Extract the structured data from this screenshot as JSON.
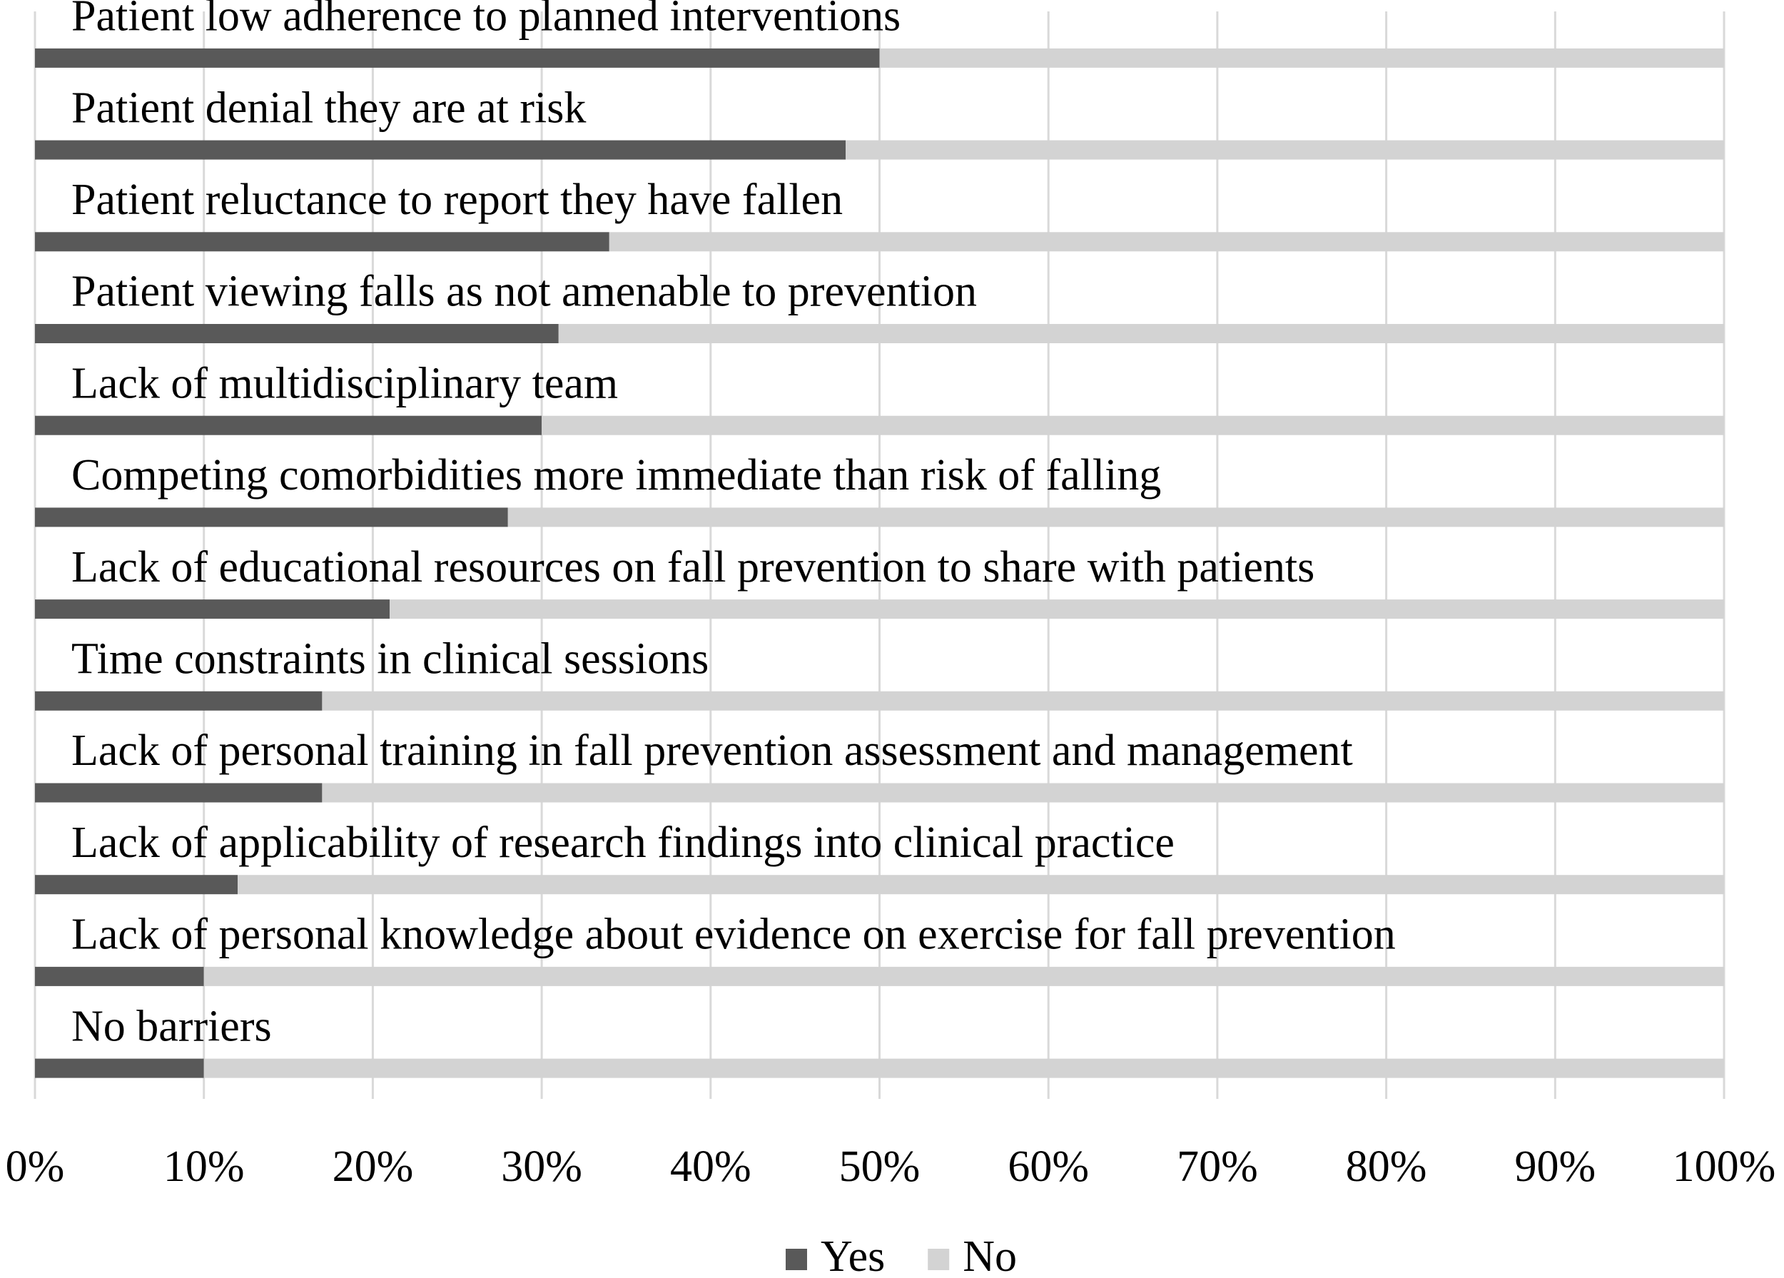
{
  "chart_data": {
    "type": "stacked-bar-horizontal",
    "categories": [
      "Patient low adherence to planned interventions",
      "Patient denial they are at risk",
      "Patient reluctance to report they have fallen",
      "Patient viewing falls as not amenable to prevention",
      "Lack of multidisciplinary team",
      "Competing comorbidities more immediate than risk of falling",
      "Lack of educational resources on fall prevention to share with patients",
      "Time constraints in clinical sessions",
      "Lack of personal training in fall prevention assessment and management",
      "Lack of applicability of research findings into clinical practice",
      "Lack of personal knowledge about evidence on exercise for fall prevention",
      "No barriers"
    ],
    "series": [
      {
        "name": "Yes",
        "color": "#595959",
        "values": [
          50,
          48,
          34,
          31,
          30,
          28,
          21,
          17,
          17,
          12,
          10,
          10
        ]
      },
      {
        "name": "No",
        "color": "#d3d3d3",
        "values": [
          50,
          52,
          66,
          69,
          70,
          72,
          79,
          83,
          83,
          88,
          90,
          90
        ]
      }
    ],
    "xlim": [
      0,
      100
    ],
    "xticks": [
      {
        "value": 0,
        "label": "0%"
      },
      {
        "value": 10,
        "label": "10%"
      },
      {
        "value": 20,
        "label": "20%"
      },
      {
        "value": 30,
        "label": "30%"
      },
      {
        "value": 40,
        "label": "40%"
      },
      {
        "value": 50,
        "label": "50%"
      },
      {
        "value": 60,
        "label": "60%"
      },
      {
        "value": 70,
        "label": "70%"
      },
      {
        "value": 80,
        "label": "80%"
      },
      {
        "value": 90,
        "label": "90%"
      },
      {
        "value": 100,
        "label": "100%"
      }
    ],
    "grid": true,
    "legend": "bottom"
  }
}
